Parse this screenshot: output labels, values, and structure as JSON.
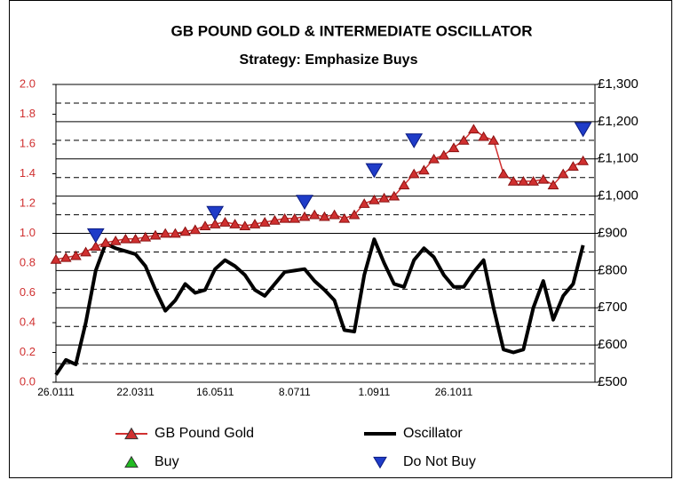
{
  "chart_data": {
    "type": "line",
    "title": "GB POUND GOLD & INTERMEDIATE OSCILLATOR",
    "subtitle": "Strategy: Emphasize Buys",
    "categories": [
      "26.0111",
      null,
      null,
      null,
      null,
      null,
      null,
      null,
      "22.0311",
      null,
      null,
      null,
      null,
      null,
      null,
      null,
      "16.0511",
      null,
      null,
      null,
      null,
      null,
      null,
      null,
      "8.0711",
      null,
      null,
      null,
      null,
      null,
      null,
      null,
      "1.0911",
      null,
      null,
      null,
      null,
      null,
      null,
      null,
      "26.1011",
      null,
      null,
      null,
      null,
      null,
      null,
      null,
      null,
      null,
      null,
      null,
      null,
      null
    ],
    "ylim": [
      0,
      2
    ],
    "yticks": [
      {
        "value": 0,
        "label": "0.0"
      },
      0.2,
      0.4,
      0.6,
      0.8,
      {
        "value": 1,
        "label": "1.0"
      },
      1.2,
      1.4,
      1.6,
      1.8,
      {
        "value": 2,
        "label": "2.0"
      }
    ],
    "y2lim": [
      500,
      1300
    ],
    "y2ticks": [
      {
        "value": 500,
        "label": "£500"
      },
      {
        "value": 600,
        "label": "£600"
      },
      {
        "value": 700,
        "label": "£700"
      },
      {
        "value": 800,
        "label": "£800"
      },
      {
        "value": 900,
        "label": "£900"
      },
      {
        "value": 1000,
        "label": "£1,000"
      },
      {
        "value": 1100,
        "label": "£1,100"
      },
      {
        "value": 1200,
        "label": "£1,200"
      },
      {
        "value": 1300,
        "label": "£1,300"
      }
    ],
    "y2minor_ticks": [
      550,
      650,
      750,
      850,
      950,
      1050,
      1150,
      1250
    ],
    "grid": true,
    "legend": "bottom",
    "series": [
      {
        "name": "GB Pound Gold",
        "color": "#d03030",
        "axis": "y2",
        "marker": "triangle-up",
        "line": true,
        "values": [
          830,
          835,
          840,
          850,
          865,
          875,
          880,
          885,
          885,
          890,
          895,
          900,
          900,
          905,
          910,
          920,
          925,
          930,
          925,
          920,
          925,
          930,
          935,
          940,
          940,
          945,
          950,
          945,
          950,
          940,
          950,
          980,
          990,
          995,
          1000,
          1030,
          1060,
          1070,
          1100,
          1110,
          1130,
          1150,
          1180,
          1160,
          1150,
          1060,
          1040,
          1040,
          1040,
          1045,
          1030,
          1060,
          1080,
          1095
        ]
      },
      {
        "name": "Oscillator",
        "color": "#000000",
        "marker": "none",
        "line": true,
        "values": [
          0.05,
          0.15,
          0.12,
          0.4,
          0.75,
          0.93,
          0.9,
          0.88,
          0.86,
          0.78,
          0.62,
          0.48,
          0.55,
          0.66,
          0.6,
          0.62,
          0.76,
          0.82,
          0.78,
          0.72,
          0.62,
          0.58,
          0.66,
          0.74,
          0.75,
          0.76,
          0.68,
          0.62,
          0.55,
          0.35,
          0.34,
          0.72,
          0.96,
          0.8,
          0.66,
          0.64,
          0.82,
          0.9,
          0.84,
          0.72,
          0.64,
          0.64,
          0.74,
          0.82,
          0.5,
          0.22,
          0.2,
          0.22,
          0.5,
          0.68,
          0.42,
          0.58,
          0.66,
          0.92
        ]
      },
      {
        "name": "Buy",
        "color": "#22bb22",
        "axis": "y2",
        "marker": "triangle-up",
        "line": false,
        "values": [
          null,
          null,
          null,
          null,
          null,
          null,
          null,
          null,
          null,
          null,
          null,
          null,
          null,
          null,
          null,
          null,
          null,
          null,
          null,
          null,
          null,
          null,
          null,
          null,
          null,
          null,
          null,
          null,
          null,
          null,
          null,
          null,
          null,
          null,
          null,
          null,
          null,
          null,
          null,
          null,
          null,
          null,
          null,
          null,
          null,
          null,
          null,
          null,
          null,
          null,
          null,
          null,
          null,
          null
        ]
      },
      {
        "name": "Do Not Buy",
        "color": "#1f3cc8",
        "axis": "y2",
        "marker": "triangle-down",
        "line": false,
        "values": [
          null,
          null,
          null,
          null,
          895,
          null,
          null,
          null,
          null,
          null,
          null,
          null,
          null,
          null,
          null,
          null,
          955,
          null,
          null,
          null,
          null,
          null,
          null,
          null,
          null,
          985,
          null,
          null,
          null,
          null,
          null,
          null,
          1070,
          null,
          null,
          null,
          1150,
          null,
          null,
          null,
          null,
          null,
          null,
          null,
          null,
          null,
          null,
          null,
          null,
          null,
          null,
          null,
          null,
          1180
        ]
      }
    ]
  }
}
